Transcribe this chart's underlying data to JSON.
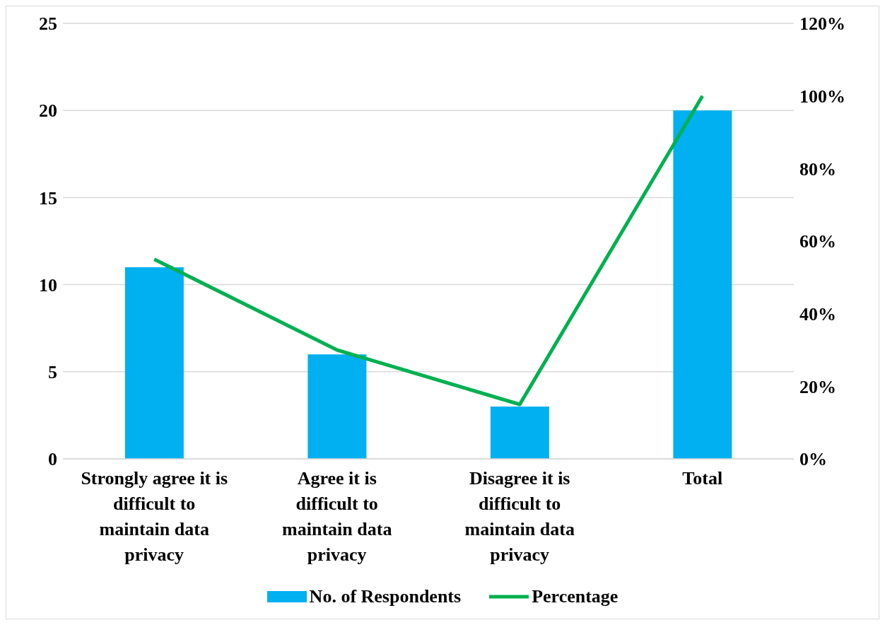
{
  "chart_data": {
    "type": "bar",
    "categories": [
      "Strongly agree it is difficult to maintain data privacy",
      "Agree it is difficult to maintain data privacy",
      "Disagree it is difficult to maintain data privacy",
      "Total"
    ],
    "series": [
      {
        "name": "No. of Respondents",
        "color": "#00b0f0",
        "values": [
          11,
          6,
          3,
          20
        ]
      },
      {
        "name": "Percentage",
        "type": "line",
        "axis": "y2",
        "color": "#00b050",
        "values": [
          55,
          30,
          15,
          100
        ]
      }
    ],
    "ylim": [
      0,
      25
    ],
    "yticks": [
      0,
      5,
      10,
      15,
      20,
      25
    ],
    "y2lim": [
      0,
      120
    ],
    "y2ticks": [
      {
        "value": 0,
        "label": "0%"
      },
      {
        "value": 20,
        "label": "20%"
      },
      {
        "value": 40,
        "label": "40%"
      },
      {
        "value": 60,
        "label": "60%"
      },
      {
        "value": 80,
        "label": "80%"
      },
      {
        "value": 100,
        "label": "100%"
      },
      {
        "value": 120,
        "label": "120%"
      }
    ],
    "grid": "y",
    "legend": "bottom",
    "marker": "none",
    "line_style": "solid"
  }
}
